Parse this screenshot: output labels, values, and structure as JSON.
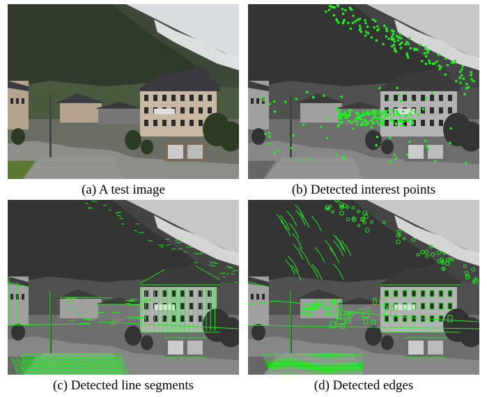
{
  "figure": {
    "panels": [
      {
        "id": "a",
        "caption": "(a) A test image",
        "mode": "color",
        "overlay": "none"
      },
      {
        "id": "b",
        "caption": "(b) Detected interest points",
        "mode": "gray",
        "overlay": "points"
      },
      {
        "id": "c",
        "caption": "(c) Detected line segments",
        "mode": "gray",
        "overlay": "lines"
      },
      {
        "id": "d",
        "caption": "(d) Detected edges",
        "mode": "gray",
        "overlay": "edges"
      }
    ],
    "overlay_color": "#22ee22"
  }
}
